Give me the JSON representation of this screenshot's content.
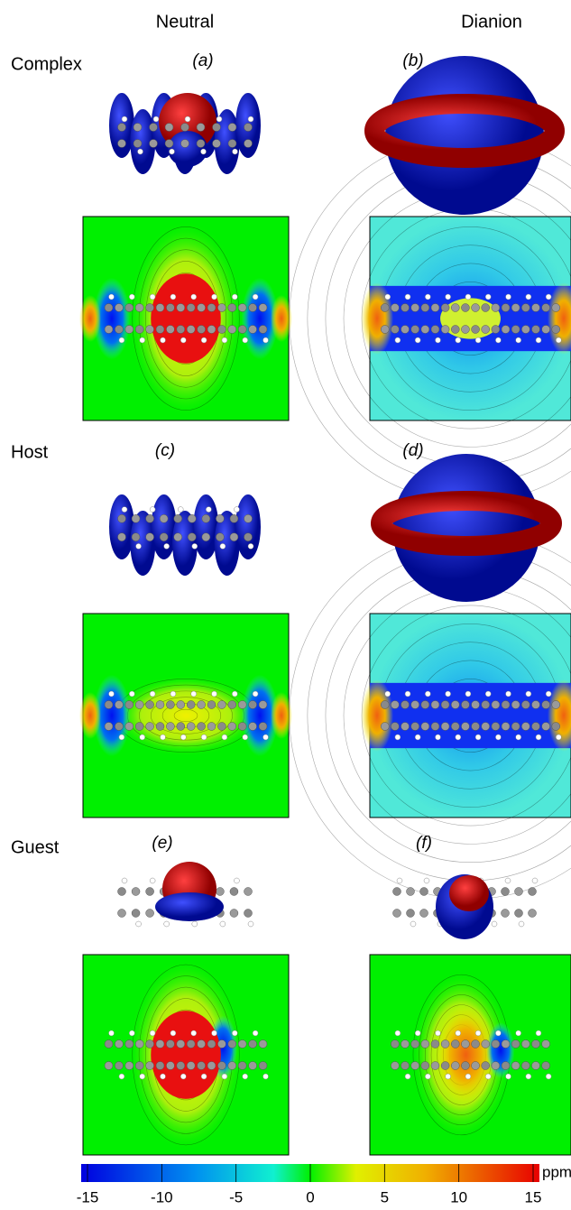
{
  "columns": [
    "Neutral",
    "Dianion"
  ],
  "rows": [
    {
      "label": "Complex",
      "panels": [
        "(a)",
        "(b)"
      ]
    },
    {
      "label": "Host",
      "panels": [
        "(c)",
        "(d)"
      ]
    },
    {
      "label": "Guest",
      "panels": [
        "(e)",
        "(f)"
      ]
    }
  ],
  "colorbar": {
    "range": [
      -15,
      15
    ],
    "ticks": [
      -15,
      -10,
      -5,
      0,
      5,
      10,
      15
    ],
    "unit": "ppm"
  }
}
